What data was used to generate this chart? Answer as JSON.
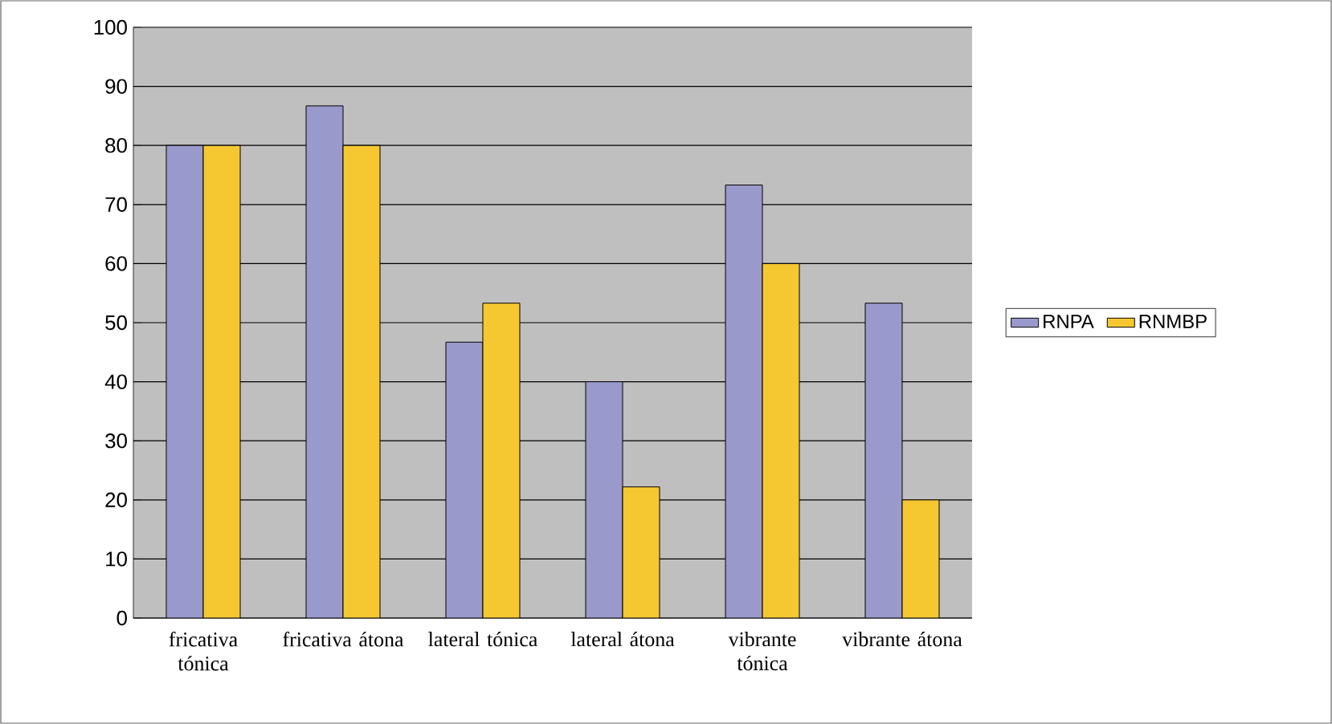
{
  "chart_data": {
    "type": "bar",
    "categories": [
      "fricativa tónica",
      "fricativa átona",
      "lateral tónica",
      "lateral átona",
      "vibrante tónica",
      "vibrante átona"
    ],
    "series": [
      {
        "name": "RNPA",
        "color": "#9999cc",
        "values": [
          80,
          86.7,
          46.7,
          40,
          73.3,
          53.3
        ]
      },
      {
        "name": "RNMBP",
        "color": "#f5c832",
        "values": [
          80,
          80,
          53.3,
          22.2,
          60,
          20
        ]
      }
    ],
    "ylim": [
      0,
      100
    ],
    "yticks": [
      0,
      10,
      20,
      30,
      40,
      50,
      60,
      70,
      80,
      90,
      100
    ],
    "grid": "y",
    "legend": "right"
  }
}
